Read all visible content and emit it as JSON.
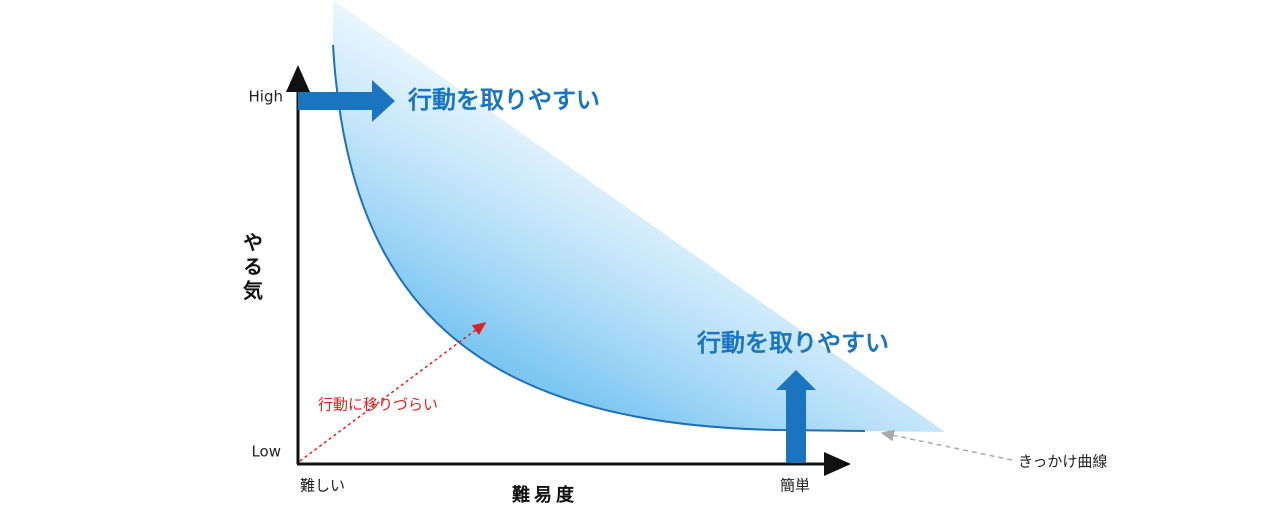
{
  "axes": {
    "y_label": "やる気",
    "y_high": "High",
    "y_low": "Low",
    "x_label": "難易度",
    "x_left": "難しい",
    "x_right": "簡単"
  },
  "annotations": {
    "top_arrow": "行動を取りやすい",
    "right_arrow": "行動を取りやすい",
    "below_curve": "行動に移りづらい",
    "curve_name": "きっかけ曲線"
  }
}
